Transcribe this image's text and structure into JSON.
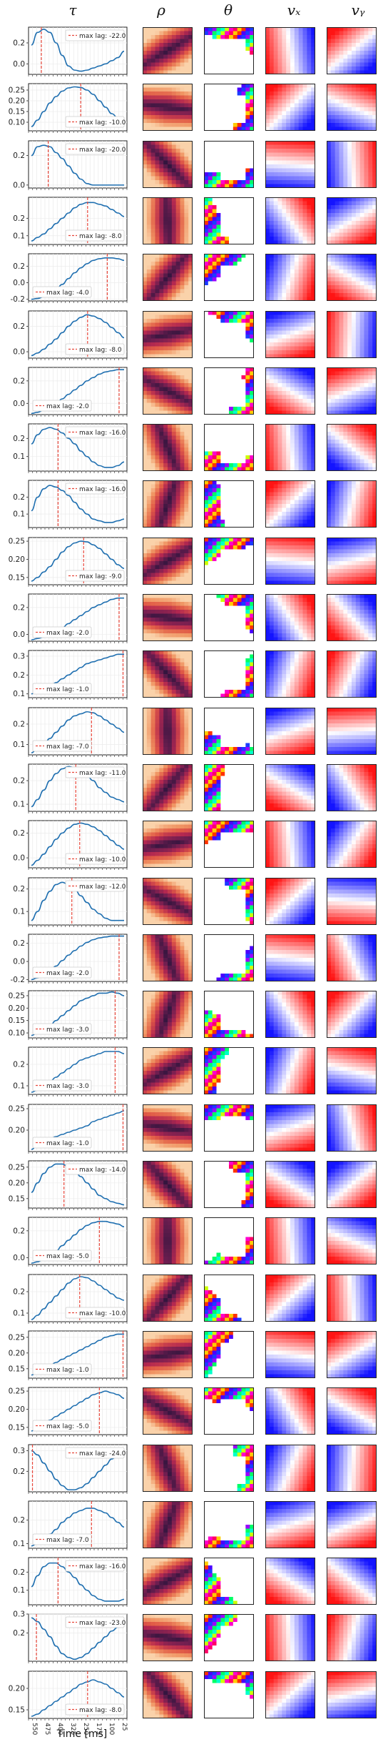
{
  "column_titles": [
    "τ",
    "ρ",
    "θ",
    "vₓ",
    "vᵧ"
  ],
  "x_axis_label": "Time [ms]",
  "x_tick_labels": [
    "550",
    "475",
    "400",
    "325",
    "250",
    "175",
    "100",
    "25"
  ],
  "legend_prefix": "max lag: ",
  "colors": {
    "curve": "#1f6fb0",
    "lag_line": "#e8463a",
    "axis": "#222222"
  },
  "chart_data": [
    {
      "type": "line",
      "row": 1,
      "yticks": [
        "0.2",
        "0.0"
      ],
      "ylim": [
        -0.1,
        0.35
      ],
      "max_lag": "-22.0",
      "lag_pos": 0.13,
      "curve": [
        0.18,
        0.3,
        0.33,
        0.3,
        0.2,
        0.08,
        -0.02,
        -0.06,
        -0.07,
        -0.06,
        -0.04,
        -0.02,
        0.0,
        0.03,
        0.06,
        0.12
      ]
    },
    {
      "type": "line",
      "row": 2,
      "yticks": [
        "0.25",
        "0.20",
        "0.15",
        "0.10"
      ],
      "ylim": [
        0.06,
        0.28
      ],
      "max_lag": "-10.0",
      "lag_pos": 0.53,
      "curve": [
        0.08,
        0.11,
        0.15,
        0.19,
        0.22,
        0.245,
        0.26,
        0.265,
        0.262,
        0.25,
        0.23,
        0.2,
        0.17,
        0.14,
        0.12,
        0.11
      ]
    },
    {
      "type": "line",
      "row": 3,
      "yticks": [
        "0.2",
        "0.0"
      ],
      "ylim": [
        -0.02,
        0.3
      ],
      "max_lag": "-20.0",
      "lag_pos": 0.2,
      "curve": [
        0.2,
        0.26,
        0.27,
        0.26,
        0.22,
        0.18,
        0.13,
        0.08,
        0.04,
        0.01,
        0.0,
        0.0,
        0.0,
        0.0,
        0.0,
        0.0
      ]
    },
    {
      "type": "line",
      "row": 4,
      "yticks": [
        "0.2",
        "0.1"
      ],
      "ylim": [
        0.05,
        0.32
      ],
      "max_lag": "-8.0",
      "lag_pos": 0.6,
      "curve": [
        0.07,
        0.09,
        0.11,
        0.14,
        0.17,
        0.2,
        0.23,
        0.26,
        0.28,
        0.29,
        0.29,
        0.28,
        0.27,
        0.25,
        0.23,
        0.21
      ]
    },
    {
      "type": "line",
      "row": 5,
      "yticks": [
        "0.2",
        "0.0",
        "-0.2"
      ],
      "ylim": [
        -0.22,
        0.35
      ],
      "max_lag": "-4.0",
      "lag_pos": 0.8,
      "curve": [
        -0.2,
        -0.19,
        -0.17,
        -0.13,
        -0.08,
        -0.02,
        0.05,
        0.12,
        0.18,
        0.23,
        0.27,
        0.29,
        0.3,
        0.3,
        0.29,
        0.27
      ]
    },
    {
      "type": "line",
      "row": 6,
      "yticks": [
        "0.2",
        "0.0"
      ],
      "ylim": [
        -0.05,
        0.32
      ],
      "max_lag": "-8.0",
      "lag_pos": 0.6,
      "curve": [
        -0.03,
        -0.01,
        0.02,
        0.06,
        0.1,
        0.15,
        0.2,
        0.24,
        0.27,
        0.29,
        0.28,
        0.26,
        0.23,
        0.19,
        0.15,
        0.11
      ]
    },
    {
      "type": "line",
      "row": 7,
      "yticks": [
        "0.2",
        "0.0"
      ],
      "ylim": [
        -0.1,
        0.32
      ],
      "max_lag": "-2.0",
      "lag_pos": 0.92,
      "curve": [
        -0.09,
        -0.08,
        -0.06,
        -0.03,
        0.0,
        0.04,
        0.08,
        0.12,
        0.16,
        0.2,
        0.23,
        0.26,
        0.28,
        0.29,
        0.3,
        0.3
      ]
    },
    {
      "type": "line",
      "row": 8,
      "yticks": [
        "0.2",
        "0.1"
      ],
      "ylim": [
        0.02,
        0.28
      ],
      "max_lag": "-16.0",
      "lag_pos": 0.3,
      "curve": [
        0.17,
        0.22,
        0.25,
        0.26,
        0.25,
        0.23,
        0.2,
        0.17,
        0.13,
        0.1,
        0.07,
        0.05,
        0.04,
        0.04,
        0.05,
        0.07
      ]
    },
    {
      "type": "line",
      "row": 9,
      "yticks": [
        "0.2",
        "0.1"
      ],
      "ylim": [
        0.02,
        0.3
      ],
      "max_lag": "-16.0",
      "lag_pos": 0.3,
      "curve": [
        0.12,
        0.2,
        0.25,
        0.27,
        0.26,
        0.24,
        0.21,
        0.17,
        0.13,
        0.1,
        0.07,
        0.06,
        0.05,
        0.05,
        0.06,
        0.07
      ]
    },
    {
      "type": "line",
      "row": 10,
      "yticks": [
        "0.25",
        "0.20",
        "0.15"
      ],
      "ylim": [
        0.13,
        0.26
      ],
      "max_lag": "-9.0",
      "lag_pos": 0.56,
      "curve": [
        0.14,
        0.15,
        0.165,
        0.18,
        0.2,
        0.22,
        0.235,
        0.245,
        0.25,
        0.248,
        0.24,
        0.23,
        0.215,
        0.2,
        0.185,
        0.175
      ]
    },
    {
      "type": "line",
      "row": 11,
      "yticks": [
        "0.2",
        "0.0"
      ],
      "ylim": [
        -0.05,
        0.3
      ],
      "max_lag": "-2.0",
      "lag_pos": 0.92,
      "curve": [
        -0.04,
        -0.03,
        -0.02,
        0.0,
        0.02,
        0.05,
        0.08,
        0.11,
        0.14,
        0.17,
        0.2,
        0.22,
        0.24,
        0.26,
        0.27,
        0.27
      ]
    },
    {
      "type": "line",
      "row": 12,
      "yticks": [
        "0.3",
        "0.2",
        "0.1"
      ],
      "ylim": [
        0.08,
        0.33
      ],
      "max_lag": "-1.0",
      "lag_pos": 0.96,
      "curve": [
        0.1,
        0.11,
        0.12,
        0.14,
        0.16,
        0.18,
        0.2,
        0.22,
        0.24,
        0.26,
        0.27,
        0.28,
        0.29,
        0.3,
        0.31,
        0.31
      ]
    },
    {
      "type": "line",
      "row": 13,
      "yticks": [
        "0.2",
        "0.1"
      ],
      "ylim": [
        0.05,
        0.28
      ],
      "max_lag": "-7.0",
      "lag_pos": 0.64,
      "curve": [
        0.06,
        0.08,
        0.1,
        0.13,
        0.16,
        0.19,
        0.22,
        0.24,
        0.25,
        0.26,
        0.255,
        0.24,
        0.22,
        0.2,
        0.18,
        0.16
      ]
    },
    {
      "type": "line",
      "row": 14,
      "yticks": [
        "0.2",
        "0.1"
      ],
      "ylim": [
        0.07,
        0.27
      ],
      "max_lag": "-11.0",
      "lag_pos": 0.48,
      "curve": [
        0.09,
        0.12,
        0.16,
        0.2,
        0.23,
        0.25,
        0.26,
        0.255,
        0.24,
        0.22,
        0.2,
        0.17,
        0.15,
        0.13,
        0.12,
        0.11
      ]
    },
    {
      "type": "line",
      "row": 15,
      "yticks": [
        "0.2",
        "0.0"
      ],
      "ylim": [
        -0.08,
        0.3
      ],
      "max_lag": "-10.0",
      "lag_pos": 0.52,
      "curve": [
        -0.06,
        -0.02,
        0.03,
        0.09,
        0.15,
        0.2,
        0.24,
        0.27,
        0.28,
        0.27,
        0.25,
        0.22,
        0.18,
        0.14,
        0.1,
        0.07
      ]
    },
    {
      "type": "line",
      "row": 16,
      "yticks": [
        "0.2",
        "0.1"
      ],
      "ylim": [
        0.04,
        0.25
      ],
      "max_lag": "-12.0",
      "lag_pos": 0.44,
      "curve": [
        0.06,
        0.1,
        0.15,
        0.19,
        0.22,
        0.23,
        0.22,
        0.2,
        0.17,
        0.14,
        0.11,
        0.09,
        0.07,
        0.06,
        0.06,
        0.06
      ]
    },
    {
      "type": "line",
      "row": 17,
      "yticks": [
        "0.2",
        "0.0",
        "-0.2"
      ],
      "ylim": [
        -0.22,
        0.3
      ],
      "max_lag": "-2.0",
      "lag_pos": 0.92,
      "curve": [
        -0.2,
        -0.18,
        -0.15,
        -0.1,
        -0.05,
        0.01,
        0.07,
        0.12,
        0.17,
        0.21,
        0.24,
        0.26,
        0.27,
        0.28,
        0.28,
        0.28
      ]
    },
    {
      "type": "line",
      "row": 18,
      "yticks": [
        "0.25",
        "0.20",
        "0.15",
        "0.10"
      ],
      "ylim": [
        0.08,
        0.27
      ],
      "max_lag": "-3.0",
      "lag_pos": 0.88,
      "curve": [
        0.09,
        0.1,
        0.11,
        0.13,
        0.15,
        0.17,
        0.19,
        0.21,
        0.23,
        0.24,
        0.25,
        0.26,
        0.26,
        0.265,
        0.26,
        0.25
      ]
    },
    {
      "type": "line",
      "row": 19,
      "yticks": [
        "0.2",
        "0.1"
      ],
      "ylim": [
        0.06,
        0.28
      ],
      "max_lag": "-3.0",
      "lag_pos": 0.88,
      "curve": [
        0.07,
        0.08,
        0.1,
        0.12,
        0.14,
        0.16,
        0.18,
        0.2,
        0.22,
        0.23,
        0.24,
        0.25,
        0.26,
        0.26,
        0.26,
        0.25
      ]
    },
    {
      "type": "line",
      "row": 20,
      "yticks": [
        "0.25",
        "0.20"
      ],
      "ylim": [
        0.15,
        0.26
      ],
      "max_lag": "-1.0",
      "lag_pos": 0.96,
      "curve": [
        0.155,
        0.165,
        0.175,
        0.18,
        0.185,
        0.19,
        0.195,
        0.2,
        0.205,
        0.21,
        0.22,
        0.225,
        0.23,
        0.235,
        0.24,
        0.245
      ]
    },
    {
      "type": "line",
      "row": 21,
      "yticks": [
        "0.25",
        "0.20",
        "0.15"
      ],
      "ylim": [
        0.12,
        0.27
      ],
      "max_lag": "-14.0",
      "lag_pos": 0.36,
      "curve": [
        0.17,
        0.2,
        0.23,
        0.25,
        0.26,
        0.26,
        0.25,
        0.24,
        0.22,
        0.2,
        0.18,
        0.16,
        0.15,
        0.14,
        0.135,
        0.13
      ]
    },
    {
      "type": "line",
      "row": 22,
      "yticks": [
        "0.2",
        "0.0"
      ],
      "ylim": [
        -0.05,
        0.3
      ],
      "max_lag": "-5.0",
      "lag_pos": 0.72,
      "curve": [
        -0.04,
        -0.03,
        -0.01,
        0.02,
        0.05,
        0.09,
        0.13,
        0.17,
        0.21,
        0.24,
        0.26,
        0.27,
        0.27,
        0.26,
        0.25,
        0.23
      ]
    },
    {
      "type": "line",
      "row": 23,
      "yticks": [
        "0.2",
        "0.1"
      ],
      "ylim": [
        0.06,
        0.28
      ],
      "max_lag": "-10.0",
      "lag_pos": 0.52,
      "curve": [
        0.07,
        0.09,
        0.12,
        0.15,
        0.18,
        0.21,
        0.24,
        0.26,
        0.27,
        0.265,
        0.25,
        0.23,
        0.21,
        0.19,
        0.17,
        0.16
      ]
    },
    {
      "type": "line",
      "row": 24,
      "yticks": [
        "0.25",
        "0.20",
        "0.15"
      ],
      "ylim": [
        0.12,
        0.27
      ],
      "max_lag": "-1.0",
      "lag_pos": 0.96,
      "curve": [
        0.13,
        0.14,
        0.15,
        0.16,
        0.17,
        0.18,
        0.19,
        0.2,
        0.21,
        0.22,
        0.23,
        0.24,
        0.25,
        0.255,
        0.26,
        0.26
      ]
    },
    {
      "type": "line",
      "row": 25,
      "yticks": [
        "0.25",
        "0.20",
        "0.15"
      ],
      "ylim": [
        0.13,
        0.26
      ],
      "max_lag": "-5.0",
      "lag_pos": 0.72,
      "curve": [
        0.14,
        0.15,
        0.16,
        0.17,
        0.18,
        0.19,
        0.2,
        0.21,
        0.22,
        0.23,
        0.24,
        0.245,
        0.25,
        0.245,
        0.24,
        0.23
      ]
    },
    {
      "type": "line",
      "row": 26,
      "yticks": [
        "0.3",
        "0.2"
      ],
      "ylim": [
        0.1,
        0.33
      ],
      "max_lag": "-24.0",
      "lag_pos": 0.04,
      "curve": [
        0.3,
        0.28,
        0.24,
        0.2,
        0.16,
        0.13,
        0.11,
        0.11,
        0.12,
        0.14,
        0.17,
        0.2,
        0.23,
        0.26,
        0.28,
        0.29
      ]
    },
    {
      "type": "line",
      "row": 27,
      "yticks": [
        "0.2",
        "0.1"
      ],
      "ylim": [
        0.08,
        0.28
      ],
      "max_lag": "-7.0",
      "lag_pos": 0.64,
      "curve": [
        0.09,
        0.1,
        0.12,
        0.14,
        0.16,
        0.19,
        0.21,
        0.23,
        0.24,
        0.25,
        0.25,
        0.24,
        0.23,
        0.21,
        0.19,
        0.17
      ]
    },
    {
      "type": "line",
      "row": 28,
      "yticks": [
        "0.2",
        "0.1"
      ],
      "ylim": [
        0.02,
        0.28
      ],
      "max_lag": "-16.0",
      "lag_pos": 0.3,
      "curve": [
        0.12,
        0.18,
        0.23,
        0.25,
        0.25,
        0.23,
        0.2,
        0.17,
        0.13,
        0.1,
        0.07,
        0.05,
        0.04,
        0.04,
        0.04,
        0.05
      ]
    },
    {
      "type": "line",
      "row": 29,
      "yticks": [
        "0.3",
        "0.2"
      ],
      "ylim": [
        0.05,
        0.3
      ],
      "max_lag": "-23.0",
      "lag_pos": 0.08,
      "curve": [
        0.28,
        0.26,
        0.22,
        0.18,
        0.13,
        0.09,
        0.07,
        0.06,
        0.07,
        0.09,
        0.12,
        0.15,
        0.18,
        0.21,
        0.23,
        0.24
      ]
    },
    {
      "type": "line",
      "row": 30,
      "yticks": [
        "0.20",
        "0.15"
      ],
      "ylim": [
        0.13,
        0.24
      ],
      "max_lag": "-8.0",
      "lag_pos": 0.6,
      "curve": [
        0.135,
        0.14,
        0.15,
        0.16,
        0.17,
        0.18,
        0.19,
        0.2,
        0.21,
        0.215,
        0.22,
        0.215,
        0.21,
        0.2,
        0.19,
        0.18
      ]
    }
  ]
}
